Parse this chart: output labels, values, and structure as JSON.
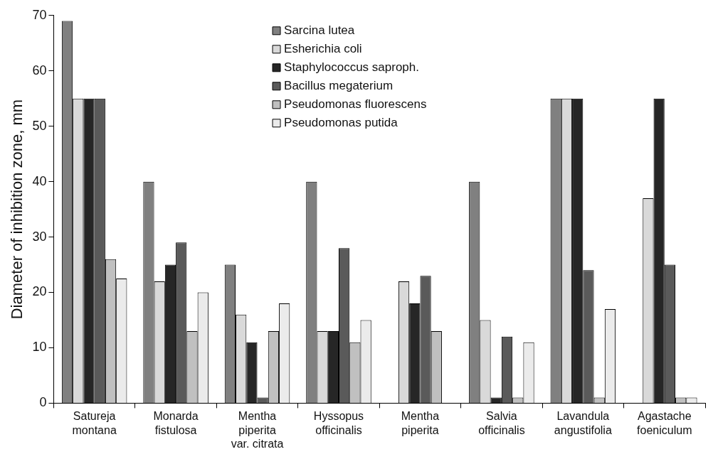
{
  "chart_data": {
    "type": "bar",
    "ylabel": "Diameter of inhibition zone, mm",
    "categories": [
      "Satureja montana",
      "Monarda fistulosa",
      "Mentha piperita var. citrata",
      "Hyssopus officinalis",
      "Mentha piperita",
      "Salvia officinalis",
      "Lavandula angustifolia",
      "Agastache foeniculum"
    ],
    "series": [
      {
        "name": "Sarcina lutea",
        "color": "#808080",
        "values": [
          69,
          40,
          25,
          40,
          0,
          40,
          55,
          0
        ]
      },
      {
        "name": "Esherichia coli",
        "color": "#d9d9d9",
        "values": [
          55,
          22,
          16,
          13,
          22,
          15,
          55,
          37
        ]
      },
      {
        "name": "Staphylococcus saproph.",
        "color": "#262626",
        "values": [
          55,
          25,
          11,
          13,
          18,
          1,
          55,
          55
        ]
      },
      {
        "name": "Bacillus megaterium",
        "color": "#5a5a5a",
        "values": [
          55,
          29,
          1,
          28,
          23,
          12,
          24,
          25
        ]
      },
      {
        "name": "Pseudomonas fluorescens",
        "color": "#c0c0c0",
        "values": [
          26,
          13,
          13,
          11,
          13,
          1,
          1,
          1
        ]
      },
      {
        "name": "Pseudomonas putida",
        "color": "#ebebeb",
        "values": [
          22.5,
          20,
          18,
          15,
          0,
          11,
          17,
          1
        ]
      }
    ],
    "ylim": [
      0,
      70
    ],
    "yticks": [
      0,
      10,
      20,
      30,
      40,
      50,
      60,
      70
    ],
    "grid": false,
    "legend": "top"
  }
}
